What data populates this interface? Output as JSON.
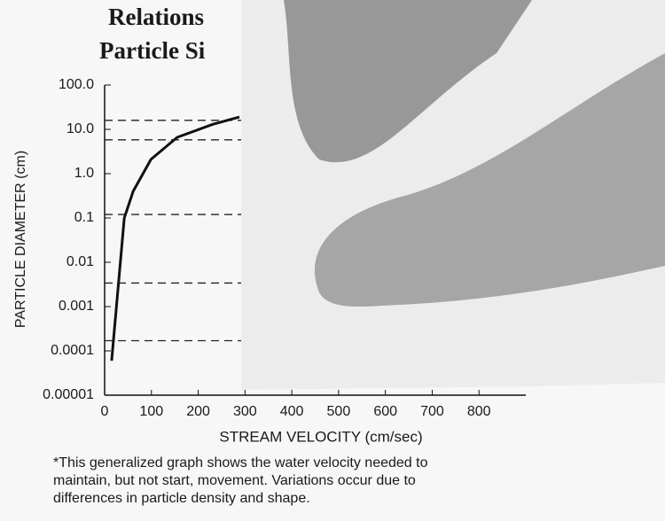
{
  "chart_data": {
    "type": "line",
    "title": [
      "Relations",
      "Particle Si"
    ],
    "x_label": "STREAM VELOCITY (cm/sec)",
    "y_label": "PARTICLE DIAMETER (cm)",
    "note": [
      "*This generalized graph shows the water velocity needed to",
      "maintain, but not start, movement. Variations occur due to",
      "differences in particle density and shape."
    ],
    "x": [
      15,
      42,
      61,
      99,
      155,
      231,
      288
    ],
    "series": [
      {
        "color": "#111111",
        "values": [
          6e-05,
          0.1,
          0.4,
          2.1,
          6.6,
          13,
          19
        ]
      }
    ],
    "reference_lines": [
      16,
      5.8,
      0.12,
      0.0034,
      0.00017
    ],
    "xlim": [
      0,
      900
    ],
    "xticks": [
      0,
      100,
      200,
      300,
      400,
      500,
      600,
      700,
      800
    ],
    "ylim": [
      1e-05,
      100
    ],
    "ylog": true,
    "yticks": [
      {
        "value": 100,
        "label": "100.0"
      },
      {
        "value": 10,
        "label": "10.0"
      },
      {
        "value": 1,
        "label": "1.0"
      },
      0.1,
      0.01,
      0.001,
      0.0001,
      1e-05
    ]
  }
}
